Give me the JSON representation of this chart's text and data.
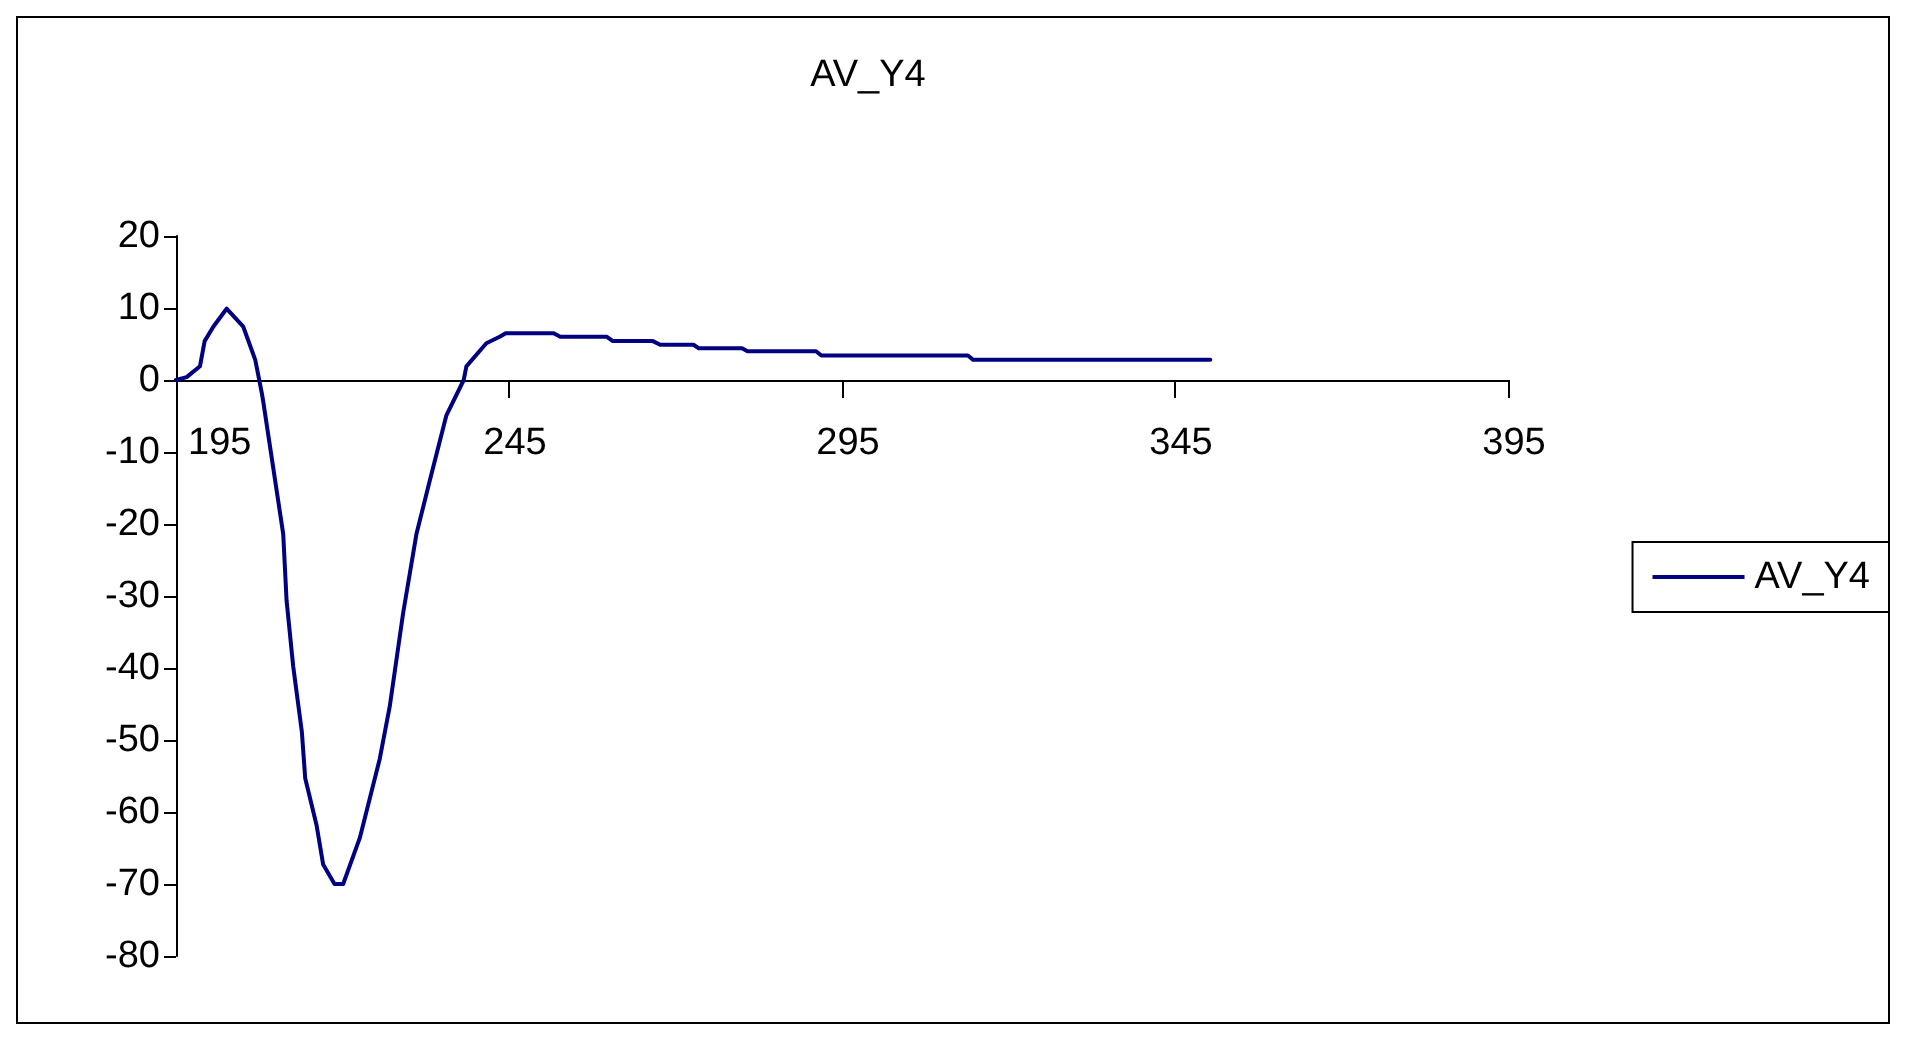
{
  "chart_data": {
    "type": "line",
    "title": "AV_Y4",
    "xlim": [
      195,
      395
    ],
    "xticks": [
      195,
      245,
      295,
      345,
      395
    ],
    "ylim": [
      -80,
      20
    ],
    "yticks": [
      -80,
      -70,
      -60,
      -50,
      -40,
      -30,
      -20,
      -10,
      0,
      10,
      20
    ],
    "grid": false,
    "legend": "right",
    "marker": "none",
    "line_style": "solid",
    "series": [
      {
        "name": "AV_Y4",
        "color": "#000080",
        "x": [
          195,
          196.6,
          198.6,
          199.3,
          200.6,
          202.6,
          205.1,
          206.9,
          207.9,
          208.1,
          209.6,
          211.1,
          211.6,
          212.6,
          213.9,
          214.4,
          216.1,
          217.1,
          218.8,
          220.1,
          222.6,
          225.6,
          227.1,
          229.1,
          231.1,
          233.1,
          235.6,
          238.2,
          238.6,
          241.6,
          243.6,
          244.5,
          251.7,
          252.7,
          259.7,
          260.6,
          266.6,
          267.7,
          272.7,
          273.5,
          280,
          280.8,
          291.1,
          291.9,
          313.9,
          314.7,
          350.3
        ],
        "values": [
          0,
          0.4,
          1.9,
          5.4,
          7.4,
          9.9,
          7.4,
          2.8,
          -1.9,
          -3,
          -12.2,
          -21.4,
          -30.6,
          -39.8,
          -48.9,
          -55.3,
          -61.8,
          -67.3,
          -70,
          -70,
          -63.6,
          -52.6,
          -45.3,
          -32.4,
          -21.4,
          -14,
          -4.9,
          0,
          1.9,
          5.1,
          6,
          6.5,
          6.5,
          6,
          6,
          5.4,
          5.4,
          4.9,
          4.9,
          4.4,
          4.4,
          4,
          4,
          3.4,
          3.4,
          2.8,
          2.8
        ]
      }
    ]
  }
}
